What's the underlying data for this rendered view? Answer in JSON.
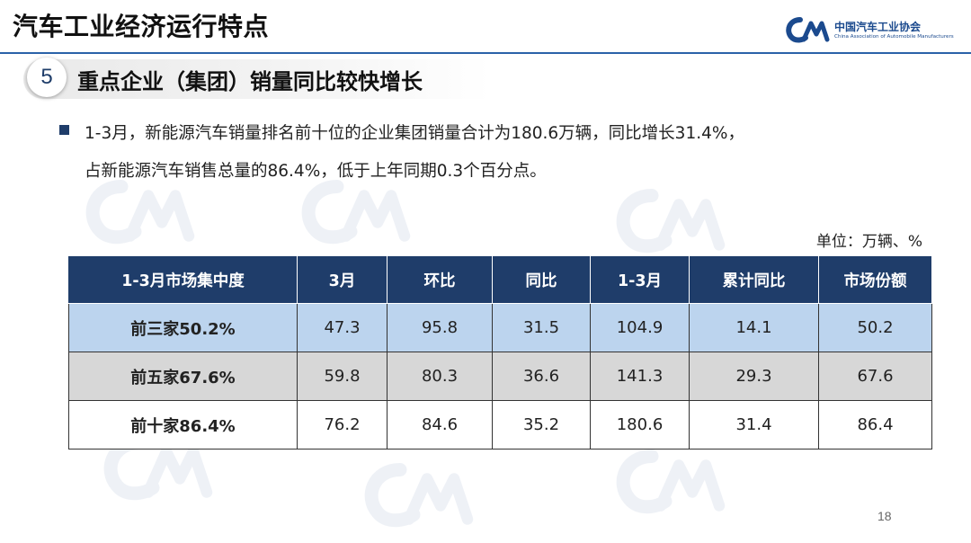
{
  "page": {
    "title": "汽车工业经济运行特点",
    "page_number": "18"
  },
  "logo": {
    "name_cn": "中国汽车工业协会",
    "name_en": "China Association of Automobile Manufacturers",
    "brand_color": "#1b4a8e"
  },
  "section": {
    "number": "5",
    "title": "重点企业（集团）销量同比较快增长"
  },
  "bullet": {
    "line1": "1-3月，新能源汽车销量排名前十位的企业集团销量合计为180.6万辆，同比增长31.4%，",
    "line2": "占新能源汽车销售总量的86.4%，低于上年同期0.3个百分点。"
  },
  "table": {
    "unit": "单位：万辆、%",
    "headers": [
      "1-3月市场集中度",
      "3月",
      "环比",
      "同比",
      "1-3月",
      "累计同比",
      "市场份额"
    ],
    "rows": [
      [
        "前三家50.2%",
        "47.3",
        "95.8",
        "31.5",
        "104.9",
        "14.1",
        "50.2"
      ],
      [
        "前五家67.6%",
        "59.8",
        "80.3",
        "36.6",
        "141.3",
        "29.3",
        "67.6"
      ],
      [
        "前十家86.4%",
        "76.2",
        "84.6",
        "35.2",
        "180.6",
        "31.4",
        "86.4"
      ]
    ],
    "header_color": "#1f3d6a",
    "row_colors": [
      "#bcd4ee",
      "#d7d7d7",
      "#ffffff"
    ]
  }
}
